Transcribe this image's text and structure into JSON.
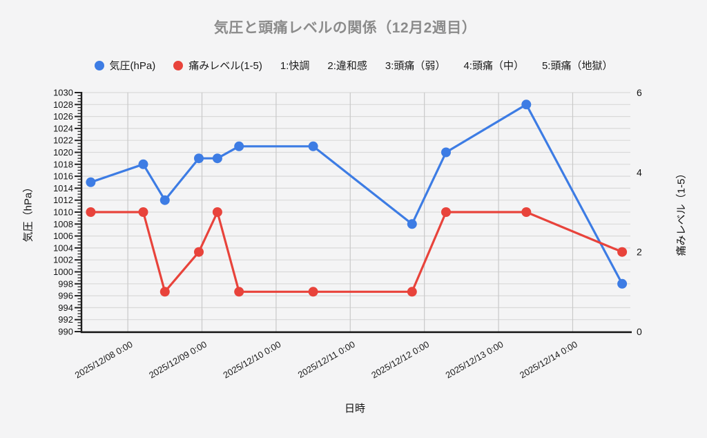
{
  "chart_data": {
    "type": "line",
    "title": "気圧と頭痛レベルの関係（12月2週目）",
    "xlabel": "日時",
    "ylabel_left": "気圧（hPa）",
    "ylabel_right": "痛みレベル（1-5）",
    "colors": {
      "pressure": "#3d7ce4",
      "pain": "#e8433b"
    },
    "legend": [
      {
        "label": "気圧(hPa)",
        "marker": true,
        "color": "#3d7ce4"
      },
      {
        "label": "痛みレベル(1-5)",
        "marker": true,
        "color": "#e8433b"
      },
      {
        "label": "1:快調",
        "marker": false
      },
      {
        "label": "2:違和感",
        "marker": false
      },
      {
        "label": "3:頭痛（弱）",
        "marker": false
      },
      {
        "label": "4:頭痛（中）",
        "marker": false
      },
      {
        "label": "5:頭痛（地獄）",
        "marker": false
      }
    ],
    "x_axis": {
      "domain_hours": [
        9,
        186
      ],
      "ticks": [
        {
          "label": "2025/12/08 0:00",
          "hours": 24
        },
        {
          "label": "2025/12/09 0:00",
          "hours": 48
        },
        {
          "label": "2025/12/10 0:00",
          "hours": 72
        },
        {
          "label": "2025/12/11 0:00",
          "hours": 96
        },
        {
          "label": "2025/12/12 0:00",
          "hours": 120
        },
        {
          "label": "2025/12/13 0:00",
          "hours": 144
        },
        {
          "label": "2025/12/14 0:00",
          "hours": 168
        }
      ]
    },
    "y_axis_left": {
      "min": 990,
      "max": 1030,
      "tick_step": 2,
      "minor_step": 0.5
    },
    "y_axis_right": {
      "min": 0,
      "max": 6,
      "ticks": [
        0,
        2,
        4,
        6
      ]
    },
    "points": [
      {
        "time": "2025/12/07 12:00",
        "hours": 12,
        "pressure": 1015,
        "pain": 3
      },
      {
        "time": "2025/12/08 5:00",
        "hours": 29,
        "pressure": 1018,
        "pain": 3
      },
      {
        "time": "2025/12/08 12:00",
        "hours": 36,
        "pressure": 1012,
        "pain": 1
      },
      {
        "time": "2025/12/08 23:00",
        "hours": 47,
        "pressure": 1019,
        "pain": 2
      },
      {
        "time": "2025/12/09 5:00",
        "hours": 53,
        "pressure": 1019,
        "pain": 3
      },
      {
        "time": "2025/12/09 12:00",
        "hours": 60,
        "pressure": 1021,
        "pain": 1
      },
      {
        "time": "2025/12/10 12:00",
        "hours": 84,
        "pressure": 1021,
        "pain": 1
      },
      {
        "time": "2025/12/11 20:00",
        "hours": 116,
        "pressure": 1008,
        "pain": 1
      },
      {
        "time": "2025/12/12 7:00",
        "hours": 127,
        "pressure": 1020,
        "pain": 3
      },
      {
        "time": "2025/12/13 9:00",
        "hours": 153,
        "pressure": 1028,
        "pain": 3
      },
      {
        "time": "2025/12/14 16:00",
        "hours": 184,
        "pressure": 998,
        "pain": 2
      }
    ],
    "series": [
      {
        "name": "気圧(hPa)",
        "axis": "left",
        "key": "pressure"
      },
      {
        "name": "痛みレベル(1-5)",
        "axis": "right",
        "key": "pain"
      }
    ]
  }
}
